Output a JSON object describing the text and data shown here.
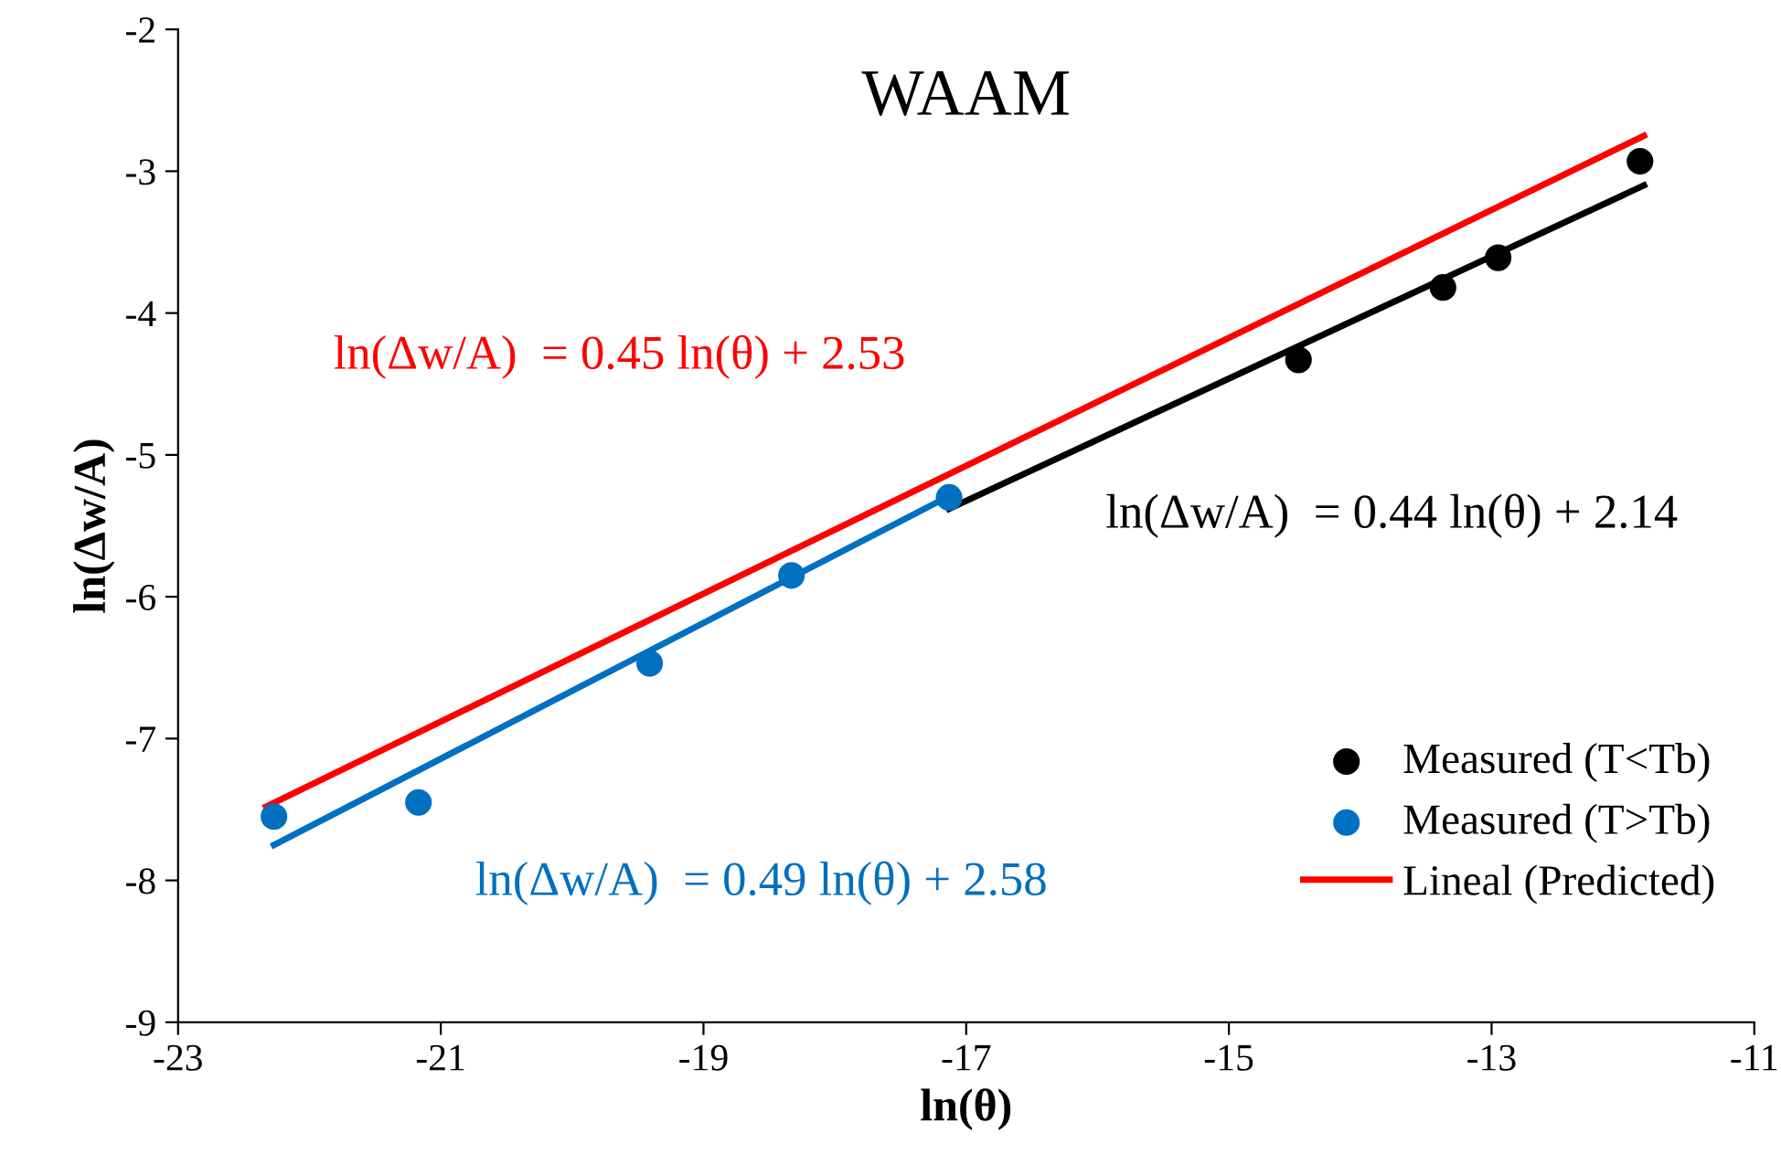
{
  "chart_data": {
    "type": "scatter",
    "title": "WAAM",
    "xlabel": "ln(θ)",
    "ylabel": "ln(Δw/A)",
    "xlim": [
      -23,
      -11
    ],
    "xticks": [
      -23,
      -21,
      -19,
      -17,
      -15,
      -13,
      -11
    ],
    "ylim": [
      -9,
      -2
    ],
    "yticks": [
      -9,
      -8,
      -7,
      -6,
      -5,
      -4,
      -3,
      -2
    ],
    "grid": false,
    "legend": "bottom right",
    "series": [
      {
        "name": "Measured (T<Tb)",
        "marker": "circle",
        "color": "#000000",
        "x": [
          -11.87,
          -12.95,
          -13.37,
          -14.47
        ],
        "values": [
          -2.93,
          -3.61,
          -3.82,
          -4.33
        ]
      },
      {
        "name": "Measured (T>Tb)",
        "marker": "circle",
        "color": "#0070c0",
        "x": [
          -17.13,
          -18.33,
          -19.41,
          -21.17,
          -22.27
        ],
        "values": [
          -5.3,
          -5.85,
          -6.47,
          -7.45,
          -7.55
        ]
      },
      {
        "name": "Lineal (Predicted)",
        "type": "line",
        "color": "#ff0000",
        "x": [
          -22.33,
          -11.84
        ],
        "values": [
          -7.48,
          -2.75
        ]
      },
      {
        "type": "line",
        "color": "#000000",
        "x": [
          -17.13,
          -11.84
        ],
        "values": [
          -5.38,
          -3.1
        ]
      },
      {
        "type": "line",
        "color": "#0070c0",
        "x": [
          -22.27,
          -17.13
        ],
        "values": [
          -7.75,
          -5.29
        ]
      }
    ],
    "annotations": [
      "ln(Δw/A)  = 0.45 ln(θ) + 2.53",
      "ln(Δw/A)  = 0.44 ln(θ) + 2.14",
      "ln(Δw/A)  = 0.49 ln(θ) + 2.58"
    ]
  }
}
